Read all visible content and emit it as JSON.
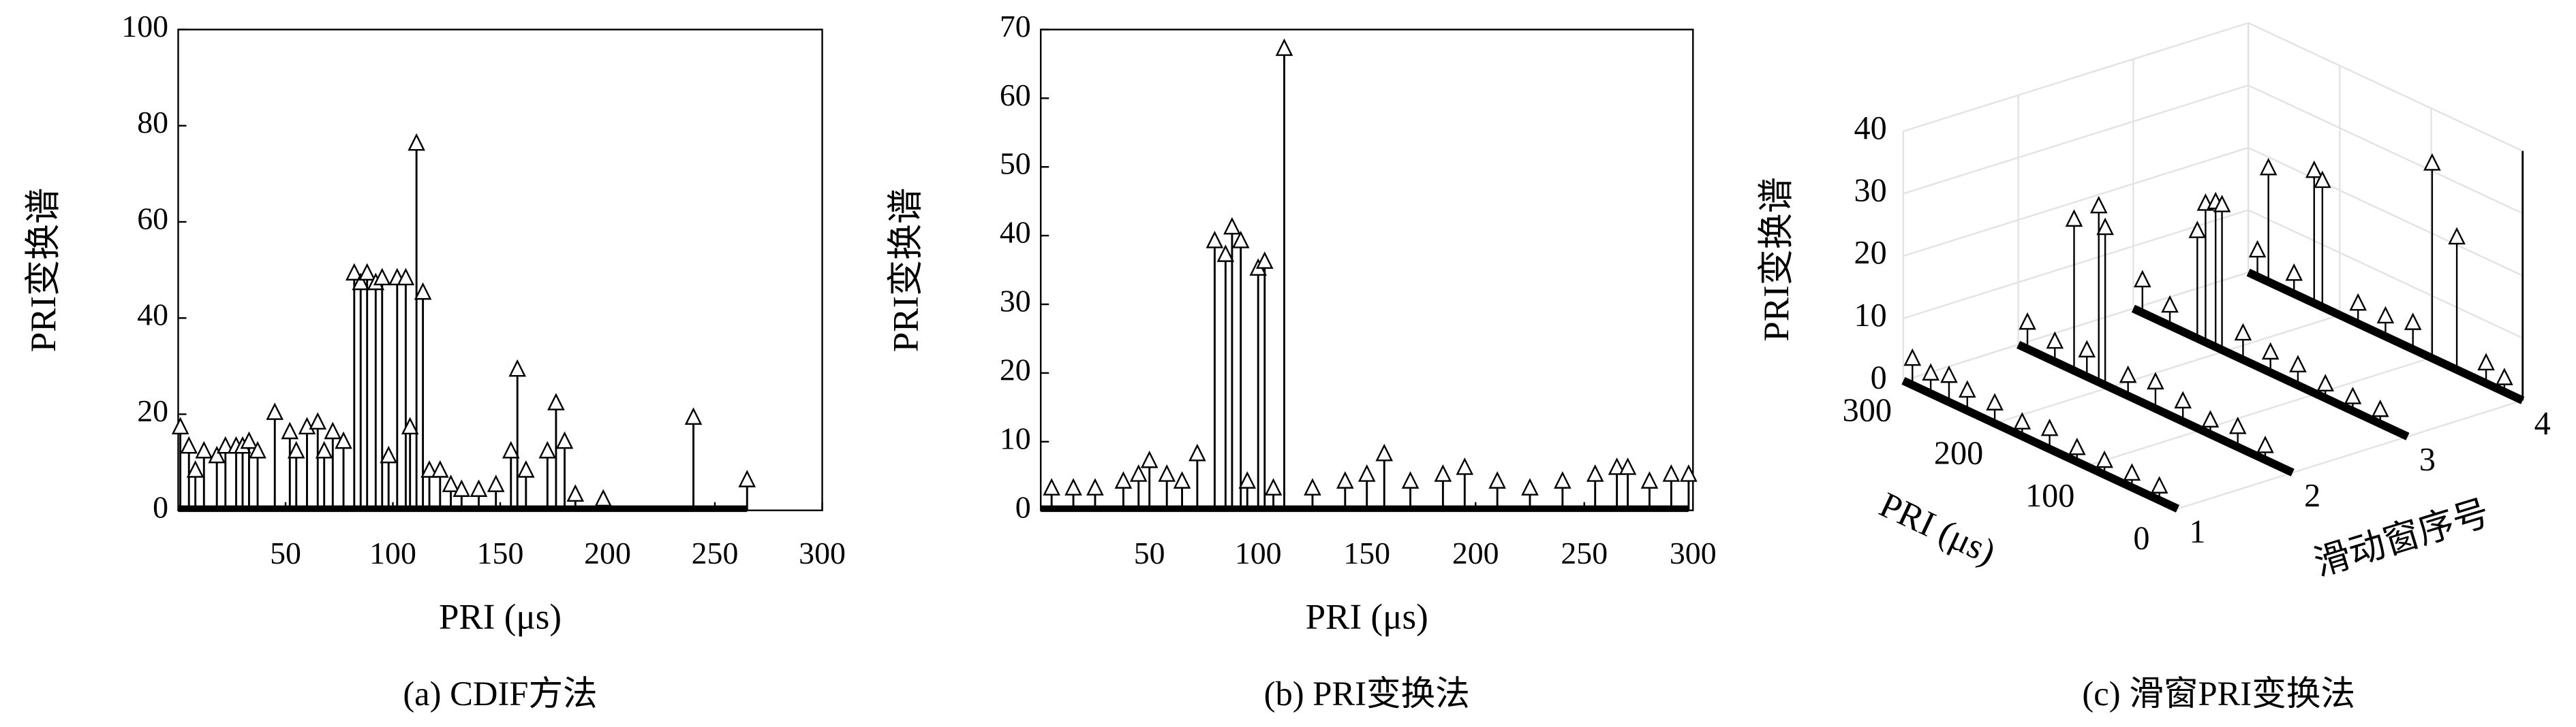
{
  "chart_data": [
    {
      "type": "stem",
      "caption": "(a) CDIF方法",
      "xlabel": "PRI (μs)",
      "ylabel": "PRI变换谱",
      "xlim": [
        0,
        300
      ],
      "ylim": [
        0,
        100
      ],
      "xticks": [
        50,
        100,
        150,
        200,
        250,
        300
      ],
      "yticks": [
        0,
        20,
        40,
        60,
        80,
        100
      ],
      "x": [
        1,
        5,
        8,
        12,
        18,
        22,
        27,
        30,
        33,
        37,
        45,
        52,
        55,
        60,
        65,
        68,
        72,
        77,
        82,
        85,
        88,
        92,
        95,
        98,
        102,
        106,
        108,
        111,
        114,
        117,
        122,
        127,
        132,
        140,
        148,
        155,
        158,
        162,
        172,
        176,
        180,
        185,
        198,
        240,
        265
      ],
      "values": [
        17,
        13,
        8,
        12,
        11,
        13,
        13,
        13,
        14,
        12,
        20,
        16,
        12,
        17,
        18,
        12,
        16,
        14,
        49,
        47,
        49,
        47,
        48,
        11,
        48,
        48,
        17,
        76,
        45,
        8,
        8,
        5,
        4,
        4,
        5,
        12,
        29,
        8,
        12,
        22,
        14,
        3,
        2,
        19,
        6
      ]
    },
    {
      "type": "stem",
      "caption": "(b) PRI变换法",
      "xlabel": "PRI (μs)",
      "ylabel": "PRI变换谱",
      "xlim": [
        0,
        300
      ],
      "ylim": [
        0,
        70
      ],
      "xticks": [
        50,
        100,
        150,
        200,
        250,
        300
      ],
      "yticks": [
        0,
        10,
        20,
        30,
        40,
        50,
        60,
        70
      ],
      "x": [
        5,
        15,
        25,
        38,
        45,
        50,
        58,
        65,
        72,
        80,
        85,
        88,
        92,
        95,
        100,
        103,
        107,
        112,
        125,
        140,
        150,
        158,
        170,
        185,
        195,
        210,
        225,
        240,
        255,
        265,
        270,
        280,
        290,
        298
      ],
      "values": [
        3,
        3,
        3,
        4,
        5,
        7,
        5,
        4,
        8,
        39,
        37,
        41,
        39,
        4,
        35,
        36,
        3,
        67,
        3,
        4,
        5,
        8,
        4,
        5,
        6,
        4,
        3,
        4,
        5,
        6,
        6,
        4,
        5,
        5
      ]
    },
    {
      "type": "stem3d",
      "caption": "(c) 滑窗PRI变换法",
      "xlabel": "PRI (μs)",
      "ylabel": "滑动窗序号",
      "zlabel": "PRI变换谱",
      "xlim": [
        0,
        300
      ],
      "xticks": [
        0,
        100,
        200,
        300
      ],
      "ylim": [
        1,
        4
      ],
      "yticks": [
        1,
        2,
        3,
        4
      ],
      "zlim": [
        0,
        40
      ],
      "zticks": [
        0,
        10,
        20,
        30,
        40
      ],
      "series": [
        {
          "x": [
            290,
            270,
            250,
            230,
            200,
            170,
            140,
            110,
            80,
            50,
            20
          ],
          "values": [
            4,
            3,
            4,
            3,
            3,
            2,
            3,
            2,
            2,
            2,
            2
          ]
        },
        {
          "x": [
            290,
            260,
            239,
            225,
            212,
            205,
            180,
            150,
            120,
            90,
            60,
            30
          ],
          "values": [
            4,
            3,
            24,
            4,
            28,
            25,
            3,
            4,
            3,
            2,
            3,
            2
          ]
        },
        {
          "x": [
            290,
            260,
            230,
            221,
            210,
            203,
            180,
            150,
            120,
            90,
            60,
            30
          ],
          "values": [
            5,
            3,
            17,
            22,
            23,
            23,
            4,
            3,
            3,
            2,
            2,
            2
          ]
        },
        {
          "x": [
            290,
            278,
            250,
            228,
            219,
            180,
            150,
            120,
            99,
            72,
            40,
            20
          ],
          "values": [
            4,
            18,
            3,
            21,
            20,
            3,
            3,
            4,
            31,
            21,
            3,
            2
          ]
        }
      ]
    }
  ]
}
